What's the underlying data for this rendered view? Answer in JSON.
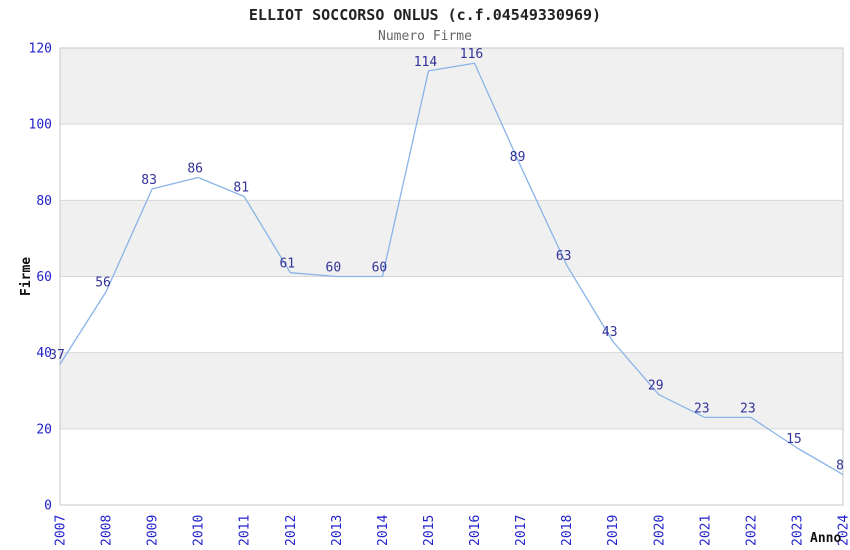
{
  "chart_data": {
    "type": "line",
    "title": "ELLIOT SOCCORSO ONLUS (c.f.04549330969)",
    "subtitle": "Numero Firme",
    "xlabel": "Anno",
    "ylabel": "Firme",
    "x": [
      "2007",
      "2008",
      "2009",
      "2010",
      "2011",
      "2012",
      "2013",
      "2014",
      "2015",
      "2016",
      "2017",
      "2018",
      "2019",
      "2020",
      "2021",
      "2022",
      "2023",
      "2024"
    ],
    "values": [
      37,
      56,
      83,
      86,
      81,
      61,
      60,
      60,
      114,
      116,
      89,
      63,
      43,
      29,
      23,
      23,
      15,
      8
    ],
    "ylim": [
      0,
      120
    ],
    "ytick_interval": 20,
    "yticks": [
      0,
      20,
      40,
      60,
      80,
      100,
      120
    ],
    "grid": true,
    "legend_position": "none",
    "x_labels_rotated_degrees": 90,
    "colors": {
      "line": "#8ab4e8",
      "tick_label": "#2222cc",
      "data_label": "#333399",
      "band_gray": "#f0f0f0",
      "band_white": "#ffffff",
      "gridline": "#d8d8d8",
      "border": "#c8c8c8",
      "title": "#222222",
      "subtitle": "#666666",
      "background": "#ffffff"
    }
  }
}
